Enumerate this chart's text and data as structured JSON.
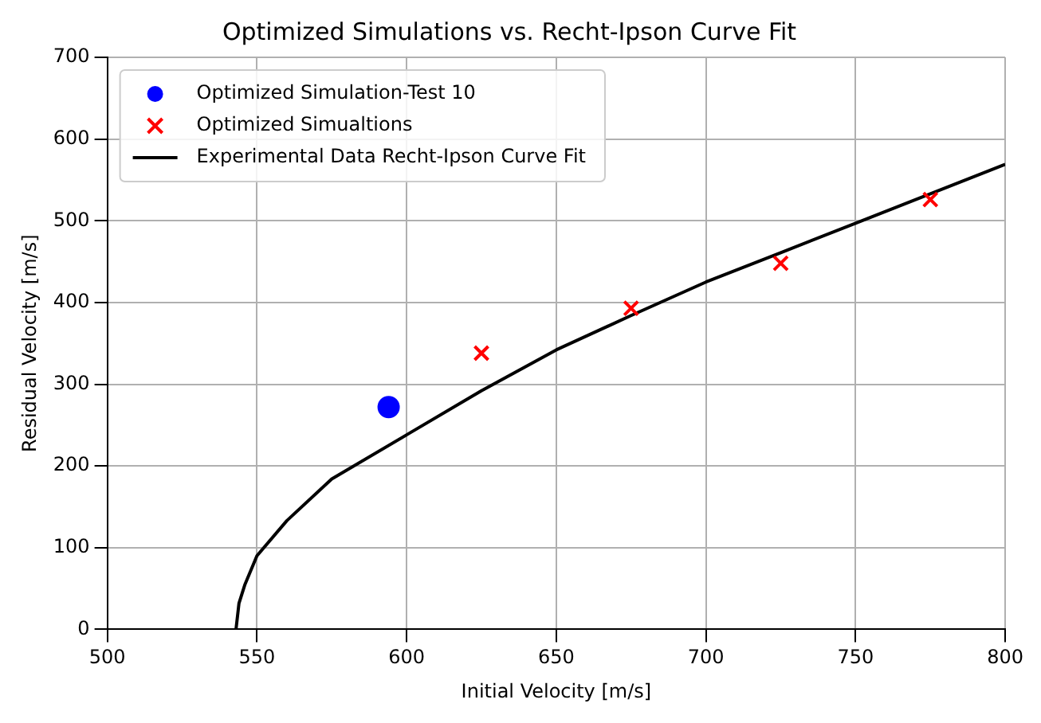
{
  "chart_data": {
    "type": "scatter",
    "title": "Optimized Simulations vs. Recht-Ipson Curve Fit",
    "xlabel": "Initial Velocity [m/s]",
    "ylabel": "Residual Velocity [m/s]",
    "series": [
      {
        "name": "Optimized Simulation-Test 10",
        "color": "#0000ff",
        "marker": "circle",
        "x": [
          594
        ],
        "values": [
          272
        ]
      },
      {
        "name": "Optimized Simualtions",
        "color": "#ff0000",
        "marker": "cross",
        "x": [
          625,
          675,
          725,
          775
        ],
        "values": [
          338,
          393,
          448,
          526
        ]
      },
      {
        "name": "Experimental Data Recht-Ipson Curve Fit",
        "type": "line",
        "color": "#000000",
        "marker": "none",
        "x": [
          543,
          544,
          546,
          550,
          560,
          575,
          600,
          625,
          650,
          675,
          700,
          725,
          750,
          775,
          800
        ],
        "values": [
          0,
          32,
          55,
          90,
          133,
          184,
          238,
          292,
          342,
          384,
          425,
          461,
          497,
          533,
          569
        ]
      }
    ],
    "xlim": [
      500,
      800
    ],
    "xticks": [
      500,
      550,
      600,
      650,
      700,
      750,
      800
    ],
    "ylim": [
      0,
      700
    ],
    "yticks": [
      0,
      100,
      200,
      300,
      400,
      500,
      600,
      700
    ],
    "grid": true,
    "legend": "top left"
  }
}
